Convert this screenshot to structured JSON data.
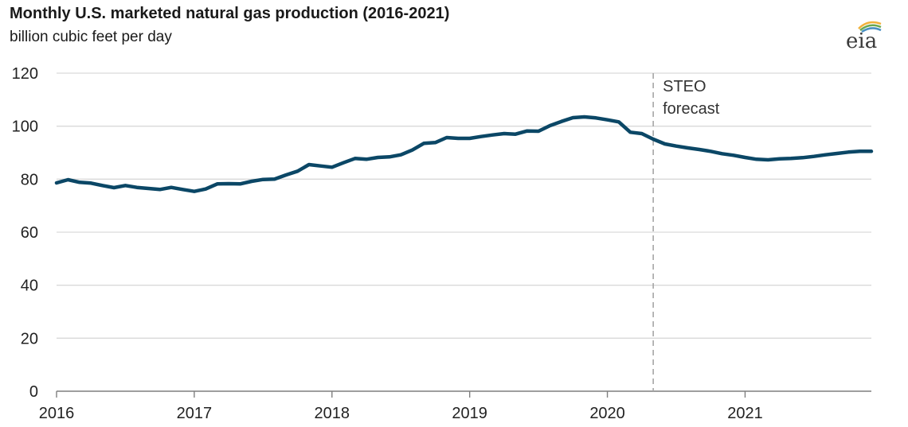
{
  "title": "Monthly U.S. marketed natural gas production (2016-2021)",
  "subtitle": "billion cubic feet per day",
  "logo_text": "eia",
  "colors": {
    "line": "#0b4766",
    "grid": "#d9d9d9",
    "forecast_divider": "#a6a6a6",
    "axis": "#7f7f7f"
  },
  "chart_data": {
    "type": "line",
    "title": "Monthly U.S. marketed natural gas production (2016-2021)",
    "ylabel": "billion cubic feet per day",
    "xlabel": "",
    "ylim": [
      0,
      120
    ],
    "y_ticks": [
      0,
      20,
      40,
      60,
      80,
      100,
      120
    ],
    "x_ticks": [
      "2016",
      "2017",
      "2018",
      "2019",
      "2020",
      "2021"
    ],
    "x_range": [
      2016.0,
      2021.917
    ],
    "grid": "horizontal",
    "forecast_start": 2020.333,
    "forecast_label_line1": "STEO",
    "forecast_label_line2": "forecast",
    "series": [
      {
        "x": [
          2016.0,
          2016.083,
          2016.167,
          2016.25,
          2016.333,
          2016.417,
          2016.5,
          2016.583,
          2016.667,
          2016.75,
          2016.833,
          2016.917,
          2017.0,
          2017.083,
          2017.167,
          2017.25,
          2017.333,
          2017.417,
          2017.5,
          2017.583,
          2017.667,
          2017.75,
          2017.833,
          2017.917,
          2018.0,
          2018.083,
          2018.167,
          2018.25,
          2018.333,
          2018.417,
          2018.5,
          2018.583,
          2018.667,
          2018.75,
          2018.833,
          2018.917,
          2019.0,
          2019.083,
          2019.167,
          2019.25,
          2019.333,
          2019.417,
          2019.5,
          2019.583,
          2019.667,
          2019.75,
          2019.833,
          2019.917,
          2020.0,
          2020.083,
          2020.167,
          2020.25,
          2020.333,
          2020.417,
          2020.5,
          2020.583,
          2020.667,
          2020.75,
          2020.833,
          2020.917,
          2021.0,
          2021.083,
          2021.167,
          2021.25,
          2021.333,
          2021.417,
          2021.5,
          2021.583,
          2021.667,
          2021.75,
          2021.833,
          2021.917
        ],
        "values": [
          78.6,
          79.8,
          78.8,
          78.5,
          77.6,
          76.8,
          77.6,
          76.9,
          76.5,
          76.1,
          76.9,
          76.1,
          75.4,
          76.3,
          78.2,
          78.3,
          78.2,
          79.2,
          79.9,
          80.0,
          81.6,
          83.0,
          85.5,
          85.0,
          84.5,
          86.2,
          87.8,
          87.5,
          88.2,
          88.4,
          89.2,
          91.0,
          93.5,
          93.8,
          95.7,
          95.4,
          95.4,
          96.1,
          96.7,
          97.2,
          97.0,
          98.2,
          98.1,
          100.2,
          101.8,
          103.2,
          103.5,
          103.1,
          102.4,
          101.6,
          97.7,
          97.2,
          95.1,
          93.3,
          92.5,
          91.8,
          91.2,
          90.5,
          89.6,
          89.0,
          88.2,
          87.5,
          87.3,
          87.7,
          87.8,
          88.1,
          88.6,
          89.2,
          89.7,
          90.2,
          90.5,
          90.5
        ]
      }
    ]
  }
}
